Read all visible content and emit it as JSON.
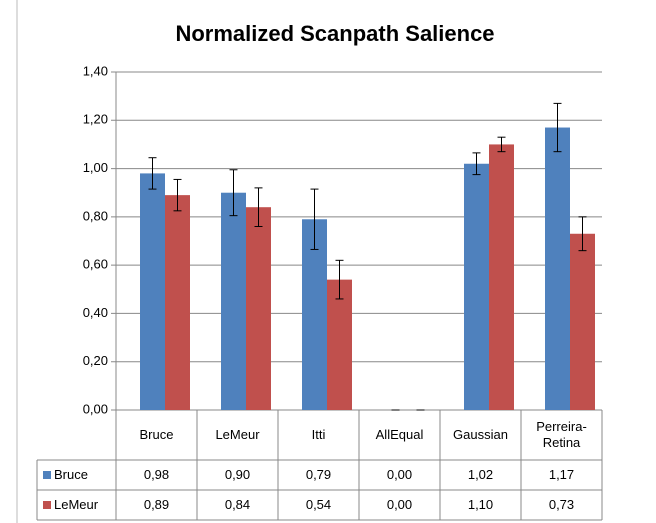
{
  "chart_data": {
    "type": "bar",
    "title": "Normalized Scanpath Salience",
    "categories": [
      "Bruce",
      "LeMeur",
      "Itti",
      "AllEqual",
      "Gaussian",
      "Perreira-Retina"
    ],
    "series": [
      {
        "name": "Bruce",
        "color": "#4f81bd",
        "values": [
          0.98,
          0.9,
          0.79,
          0.0,
          1.02,
          1.17
        ],
        "value_labels": [
          "0,98",
          "0,90",
          "0,79",
          "0,00",
          "1,02",
          "1,17"
        ],
        "errors": [
          0.065,
          0.095,
          0.125,
          0,
          0.045,
          0.1
        ]
      },
      {
        "name": "LeMeur",
        "color": "#c0504d",
        "values": [
          0.89,
          0.84,
          0.54,
          0.0,
          1.1,
          0.73
        ],
        "value_labels": [
          "0,89",
          "0,84",
          "0,54",
          "0,00",
          "1,10",
          "0,73"
        ],
        "errors": [
          0.065,
          0.08,
          0.08,
          0,
          0.03,
          0.07
        ]
      }
    ],
    "ylim": [
      0,
      1.4
    ],
    "yticks": [
      {
        "value": 0,
        "label": "0,00"
      },
      {
        "value": 0.2,
        "label": "0,20"
      },
      {
        "value": 0.4,
        "label": "0,40"
      },
      {
        "value": 0.6,
        "label": "0,60"
      },
      {
        "value": 0.8,
        "label": "0,80"
      },
      {
        "value": 1,
        "label": "1,00"
      },
      {
        "value": 1.2,
        "label": "1,20"
      },
      {
        "value": 1.4,
        "label": "1,40"
      }
    ],
    "grid": true
  }
}
